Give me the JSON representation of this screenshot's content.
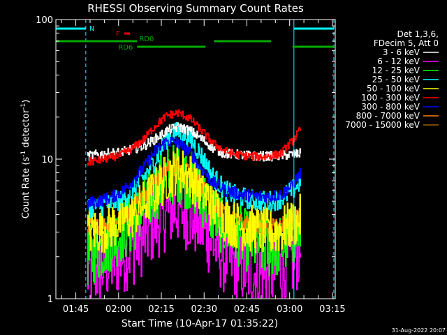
{
  "chart_data": {
    "type": "line",
    "title": "RHESSI Observing Summary Count Rates",
    "xlabel": "Start Time (10-Apr-17 01:35:22)",
    "ylabel_main": "Count Rate (s",
    "ylabel_sup": "-1",
    "ylabel_mid": " detector",
    "ylabel_close": ")",
    "yscale": "log",
    "ylim": [
      1,
      100
    ],
    "yticks": [
      {
        "value": 1,
        "label": "1"
      },
      {
        "value": 10,
        "label": "10"
      },
      {
        "value": 100,
        "label": "100"
      }
    ],
    "xlim_min": [
      98,
      196
    ],
    "xticks": [
      {
        "min": 105,
        "label": "01:45"
      },
      {
        "min": 120,
        "label": "02:00"
      },
      {
        "min": 135,
        "label": "02:15"
      },
      {
        "min": 150,
        "label": "02:30"
      },
      {
        "min": 165,
        "label": "02:45"
      },
      {
        "min": 180,
        "label": "03:00"
      },
      {
        "min": 195,
        "label": "03:15"
      }
    ],
    "legend_header": [
      "Det 1,3,6,",
      "FDecim 5, Att 0"
    ],
    "series": [
      {
        "name": "3 - 6 keV",
        "color": "#ffffff",
        "x": [
          109,
          113,
          117,
          121,
          125,
          129,
          133,
          137,
          141,
          145,
          149,
          153,
          157,
          161,
          165,
          169,
          173,
          177,
          181,
          184
        ],
        "y": [
          10.5,
          10.8,
          11,
          11.2,
          11.8,
          12.5,
          14,
          16,
          17,
          16,
          14,
          12,
          11,
          10.8,
          10.6,
          10.5,
          10.5,
          10.6,
          10.8,
          11
        ]
      },
      {
        "name": "6 - 12 keV",
        "color": "#ff00ff",
        "x": [
          109,
          113,
          117,
          121,
          125,
          129,
          133,
          137,
          141,
          145,
          149,
          153,
          157,
          161,
          165,
          169,
          173,
          177,
          181,
          184
        ],
        "y": [
          1.5,
          1.6,
          1.8,
          2,
          2.3,
          2.8,
          3.5,
          4.2,
          4.5,
          4,
          3.3,
          2.5,
          2,
          1.8,
          1.6,
          1.5,
          1.5,
          1.6,
          1.9,
          2.3
        ]
      },
      {
        "name": "12 - 25 keV",
        "color": "#00ff00",
        "x": [
          109,
          113,
          117,
          121,
          125,
          129,
          133,
          137,
          141,
          145,
          149,
          153,
          157,
          161,
          165,
          169,
          173,
          177,
          181,
          184
        ],
        "y": [
          2,
          2.2,
          2.6,
          3,
          3.5,
          4.5,
          6,
          7.5,
          8,
          7,
          5.5,
          4,
          3.3,
          2.9,
          2.6,
          2.4,
          2.3,
          2.4,
          2.8,
          3.2
        ]
      },
      {
        "name": "25 - 50 keV",
        "color": "#00ffff",
        "x": [
          109,
          113,
          117,
          121,
          125,
          129,
          133,
          137,
          141,
          145,
          149,
          153,
          157,
          161,
          165,
          169,
          173,
          177,
          181,
          184
        ],
        "y": [
          4.5,
          4.6,
          4.8,
          5.2,
          6,
          7.5,
          10,
          14,
          16,
          14,
          10.5,
          7.5,
          6,
          5.5,
          5.2,
          5,
          5,
          5.2,
          6,
          7
        ]
      },
      {
        "name": "50 - 100 keV",
        "color": "#ffff00",
        "x": [
          109,
          113,
          117,
          121,
          125,
          129,
          133,
          137,
          141,
          145,
          149,
          153,
          157,
          161,
          165,
          169,
          173,
          177,
          181,
          184
        ],
        "y": [
          3,
          3.1,
          3.3,
          3.6,
          4,
          4.8,
          6,
          7.5,
          8.5,
          7.5,
          6,
          4.6,
          3.8,
          3.4,
          3.2,
          3.1,
          3,
          3.1,
          3.4,
          3.8
        ]
      },
      {
        "name": "100 - 300 keV",
        "color": "#ff0000",
        "x": [
          109,
          113,
          117,
          121,
          125,
          129,
          133,
          137,
          141,
          145,
          149,
          153,
          157,
          161,
          165,
          169,
          173,
          177,
          181,
          184
        ],
        "y": [
          9.5,
          9.8,
          10.2,
          10.8,
          12,
          14,
          17.5,
          20.5,
          21.5,
          19.5,
          16,
          13,
          11.5,
          10.8,
          10.5,
          10.4,
          10.5,
          11,
          13.5,
          16.5
        ]
      },
      {
        "name": "300 - 800 keV",
        "color": "#0000ff",
        "x": [
          109,
          113,
          117,
          121,
          125,
          129,
          133,
          137,
          141,
          145,
          149,
          153,
          157,
          161,
          165,
          169,
          173,
          177,
          181,
          184
        ],
        "y": [
          4.8,
          5,
          5.3,
          5.8,
          7,
          8.8,
          11.5,
          13.5,
          13,
          11,
          8.5,
          6.8,
          6,
          5.7,
          5.5,
          5.4,
          5.4,
          5.6,
          6.5,
          8
        ]
      },
      {
        "name": "800 - 7000 keV",
        "color": "#ff8000",
        "x": [
          109,
          113,
          117,
          121,
          125,
          129,
          133,
          137,
          141,
          145,
          149,
          153,
          157,
          161,
          165,
          169,
          173,
          177,
          181,
          184
        ],
        "y": [
          3.3,
          3.3,
          3.5,
          3.8,
          4.5,
          5.6,
          7,
          8.5,
          8.8,
          8,
          6.5,
          5,
          4,
          3.6,
          3.4,
          3.3,
          3.3,
          3.4,
          3.7,
          4
        ]
      },
      {
        "name": "7000 - 15000 keV",
        "color": "#a06000",
        "x": [],
        "y": []
      }
    ],
    "flags": [
      {
        "label": "N",
        "color": "#00ffff",
        "row": "top",
        "segments": [
          [
            98,
            108.5
          ],
          [
            181.5,
            195.5
          ]
        ]
      },
      {
        "label": "F",
        "color": "#ff0000",
        "row": "f",
        "segments": [
          [
            122,
            124
          ]
        ]
      },
      {
        "label": "RD0",
        "color": "#00aa00",
        "row": "rd0",
        "segments": [
          [
            98,
            126.5
          ],
          [
            153.5,
            173.5
          ]
        ]
      },
      {
        "label": "RD6",
        "color": "#00aa00",
        "row": "rd6",
        "segments": [
          [
            126.5,
            150.5
          ],
          [
            181,
            195.5
          ]
        ]
      }
    ],
    "vlines_solid": [
      98,
      181.5
    ],
    "vlines_dashed": [
      108.5,
      195.5
    ],
    "vline_color": "#00ffff"
  },
  "footer_date": "31-Aug-2022 20:07"
}
